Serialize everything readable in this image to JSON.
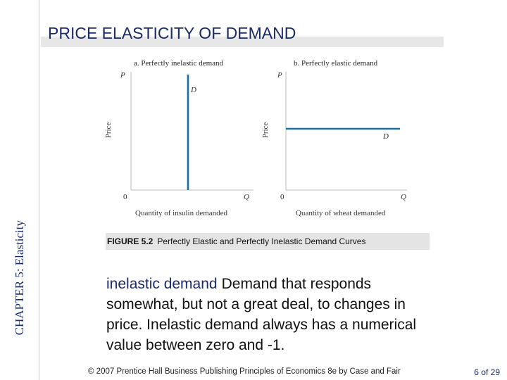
{
  "slide": {
    "chapter": "CHAPTER 5: Elasticity",
    "title": "PRICE ELASTICITY OF DEMAND",
    "figure_caption": {
      "number": "FIGURE 5.2",
      "text": "Perfectly Elastic and Perfectly Inelastic Demand Curves"
    },
    "definition": {
      "term": "inelastic demand",
      "text": "Demand that responds somewhat, but not a great deal, to changes in price.  Inelastic demand always has a numerical value between zero and -1."
    },
    "footer": "© 2007 Prentice Hall Business Publishing   Principles of Economics 8e by Case and Fair",
    "page": "6 of 29"
  },
  "diagram": {
    "panel_a": {
      "title": "a. Perfectly inelastic demand",
      "y_axis_label": "Price",
      "y_axis_symbol": "P",
      "x_axis_label": "Quantity of insulin demanded",
      "x_axis_symbol": "Q",
      "origin": "0",
      "curve_label": "D"
    },
    "panel_b": {
      "title": "b. Perfectly elastic demand",
      "y_axis_label": "Price",
      "y_axis_symbol": "P",
      "x_axis_label": "Quantity of wheat demanded",
      "x_axis_symbol": "Q",
      "origin": "0",
      "curve_label": "D"
    },
    "colors": {
      "curve": "#1a6fa0",
      "axis": "#bdbdbd"
    }
  }
}
